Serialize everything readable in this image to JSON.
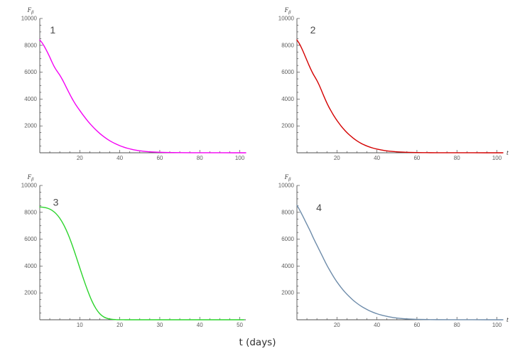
{
  "figure": {
    "bottom_label": "t (days)",
    "background": "#ffffff"
  },
  "style": {
    "axis_color": "#4f4f4f",
    "tick_label_color": "#5e5e5e",
    "panel_label_color": "#4a4a4a",
    "axis_label_color": "#3a3a3a",
    "curve_width": 1.4
  },
  "chart_data": [
    {
      "type": "line",
      "panel_label": "1",
      "series_color": "#F400F4",
      "ylabel_base": "F",
      "ylabel_sub": "β",
      "x_end_label": "",
      "xlim": [
        0,
        103
      ],
      "ylim": [
        0,
        10000
      ],
      "xticks": [
        20,
        40,
        60,
        80,
        100
      ],
      "yticks": [
        2000,
        4000,
        6000,
        8000,
        10000
      ],
      "label_pos": [
        6.5,
        8900
      ],
      "points": [
        [
          0,
          8400
        ],
        [
          1,
          8220
        ],
        [
          2,
          7990
        ],
        [
          3,
          7720
        ],
        [
          4,
          7430
        ],
        [
          5,
          7120
        ],
        [
          6,
          6790
        ],
        [
          7,
          6480
        ],
        [
          8,
          6220
        ],
        [
          9,
          6000
        ],
        [
          10,
          5780
        ],
        [
          11,
          5530
        ],
        [
          12,
          5250
        ],
        [
          13,
          4950
        ],
        [
          14,
          4650
        ],
        [
          15,
          4360
        ],
        [
          16,
          4080
        ],
        [
          17,
          3820
        ],
        [
          18,
          3580
        ],
        [
          19,
          3360
        ],
        [
          20,
          3150
        ],
        [
          22,
          2740
        ],
        [
          24,
          2360
        ],
        [
          26,
          2020
        ],
        [
          28,
          1710
        ],
        [
          30,
          1440
        ],
        [
          32,
          1200
        ],
        [
          34,
          990
        ],
        [
          36,
          810
        ],
        [
          38,
          660
        ],
        [
          40,
          530
        ],
        [
          42,
          420
        ],
        [
          44,
          330
        ],
        [
          46,
          255
        ],
        [
          48,
          195
        ],
        [
          50,
          148
        ],
        [
          53,
          98
        ],
        [
          56,
          63
        ],
        [
          60,
          36
        ],
        [
          65,
          18
        ],
        [
          70,
          9
        ],
        [
          76,
          4
        ],
        [
          84,
          2
        ],
        [
          92,
          1
        ],
        [
          103,
          0
        ]
      ]
    },
    {
      "type": "line",
      "panel_label": "2",
      "series_color": "#D40000",
      "ylabel_base": "F",
      "ylabel_sub": "β",
      "x_end_label": "t",
      "xlim": [
        0,
        103
      ],
      "ylim": [
        0,
        10000
      ],
      "xticks": [
        20,
        40,
        60,
        80,
        100
      ],
      "yticks": [
        2000,
        4000,
        6000,
        8000,
        10000
      ],
      "label_pos": [
        8,
        8900
      ],
      "points": [
        [
          0,
          8400
        ],
        [
          1,
          8180
        ],
        [
          2,
          7900
        ],
        [
          3,
          7580
        ],
        [
          4,
          7230
        ],
        [
          5,
          6880
        ],
        [
          6,
          6530
        ],
        [
          7,
          6200
        ],
        [
          8,
          5900
        ],
        [
          9,
          5640
        ],
        [
          10,
          5380
        ],
        [
          11,
          5080
        ],
        [
          12,
          4740
        ],
        [
          13,
          4380
        ],
        [
          14,
          4030
        ],
        [
          15,
          3700
        ],
        [
          16,
          3400
        ],
        [
          17,
          3130
        ],
        [
          18,
          2870
        ],
        [
          19,
          2630
        ],
        [
          20,
          2410
        ],
        [
          22,
          2010
        ],
        [
          24,
          1660
        ],
        [
          26,
          1360
        ],
        [
          28,
          1110
        ],
        [
          30,
          890
        ],
        [
          32,
          710
        ],
        [
          34,
          565
        ],
        [
          36,
          445
        ],
        [
          38,
          350
        ],
        [
          40,
          272
        ],
        [
          42,
          212
        ],
        [
          44,
          163
        ],
        [
          46,
          125
        ],
        [
          48,
          95
        ],
        [
          50,
          72
        ],
        [
          53,
          47
        ],
        [
          56,
          30
        ],
        [
          60,
          17
        ],
        [
          65,
          8
        ],
        [
          70,
          4
        ],
        [
          78,
          2
        ],
        [
          88,
          1
        ],
        [
          103,
          0
        ]
      ]
    },
    {
      "type": "line",
      "panel_label": "3",
      "series_color": "#2BD42B",
      "ylabel_base": "F",
      "ylabel_sub": "β",
      "x_end_label": "",
      "xlim": [
        0,
        51.5
      ],
      "ylim": [
        0,
        10000
      ],
      "xticks": [
        10,
        20,
        30,
        40,
        50
      ],
      "yticks": [
        2000,
        4000,
        6000,
        8000,
        10000
      ],
      "label_pos": [
        4,
        8500
      ],
      "points": [
        [
          0,
          8400
        ],
        [
          1,
          8370
        ],
        [
          2,
          8300
        ],
        [
          3,
          8160
        ],
        [
          4,
          7920
        ],
        [
          5,
          7560
        ],
        [
          6,
          7060
        ],
        [
          7,
          6420
        ],
        [
          8,
          5650
        ],
        [
          9,
          4780
        ],
        [
          10,
          3870
        ],
        [
          11,
          2980
        ],
        [
          12,
          2150
        ],
        [
          13,
          1420
        ],
        [
          14,
          850
        ],
        [
          15,
          450
        ],
        [
          16,
          210
        ],
        [
          17,
          90
        ],
        [
          18,
          34
        ],
        [
          19,
          11
        ],
        [
          20,
          3
        ],
        [
          21,
          1
        ],
        [
          22.5,
          0
        ],
        [
          28,
          0
        ],
        [
          35,
          0
        ],
        [
          43,
          0
        ],
        [
          51,
          0
        ]
      ]
    },
    {
      "type": "line",
      "panel_label": "4",
      "series_color": "#6E8CAA",
      "ylabel_base": "F",
      "ylabel_sub": "β",
      "x_end_label": "t",
      "xlim": [
        0,
        103
      ],
      "ylim": [
        0,
        10000
      ],
      "xticks": [
        20,
        40,
        60,
        80,
        100
      ],
      "yticks": [
        2000,
        4000,
        6000,
        8000,
        10000
      ],
      "label_pos": [
        11,
        8100
      ],
      "points": [
        [
          0,
          8520
        ],
        [
          1,
          8270
        ],
        [
          2,
          7990
        ],
        [
          3,
          7700
        ],
        [
          4,
          7400
        ],
        [
          5,
          7100
        ],
        [
          6,
          6800
        ],
        [
          7,
          6490
        ],
        [
          8,
          6160
        ],
        [
          9,
          5850
        ],
        [
          10,
          5550
        ],
        [
          11,
          5250
        ],
        [
          12,
          4950
        ],
        [
          13,
          4650
        ],
        [
          14,
          4350
        ],
        [
          15,
          4060
        ],
        [
          16,
          3790
        ],
        [
          17,
          3530
        ],
        [
          18,
          3280
        ],
        [
          19,
          3040
        ],
        [
          20,
          2820
        ],
        [
          22,
          2420
        ],
        [
          24,
          2060
        ],
        [
          26,
          1750
        ],
        [
          28,
          1470
        ],
        [
          30,
          1230
        ],
        [
          32,
          1020
        ],
        [
          34,
          845
        ],
        [
          36,
          690
        ],
        [
          38,
          560
        ],
        [
          40,
          450
        ],
        [
          42,
          360
        ],
        [
          44,
          285
        ],
        [
          46,
          222
        ],
        [
          48,
          170
        ],
        [
          50,
          130
        ],
        [
          53,
          85
        ],
        [
          56,
          55
        ],
        [
          60,
          31
        ],
        [
          65,
          15
        ],
        [
          70,
          7
        ],
        [
          78,
          3
        ],
        [
          88,
          1
        ],
        [
          103,
          0
        ]
      ]
    }
  ]
}
